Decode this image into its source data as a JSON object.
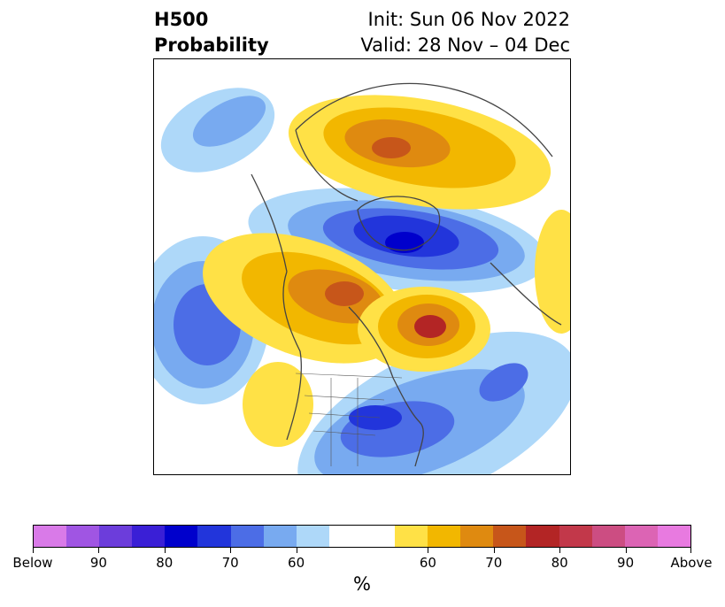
{
  "header": {
    "title_line1": "H500",
    "title_line2": "Probability",
    "init": "Init: Sun 06 Nov 2022",
    "valid": "Valid: 28 Nov – 04 Dec"
  },
  "colorbar": {
    "unit": "%",
    "colors": [
      "#d97ae8",
      "#a055e3",
      "#6c3ddb",
      "#3a1fd6",
      "#0000cc",
      "#2235db",
      "#4c6de6",
      "#78aaf0",
      "#aed8f9",
      "#ffffff",
      "#ffe146",
      "#f2b700",
      "#df8a10",
      "#c7561a",
      "#b32525",
      "#c2384a",
      "#cc4d82",
      "#dc64b4",
      "#e87ae0"
    ],
    "segment_widths": [
      1,
      1,
      1,
      1,
      1,
      1,
      1,
      1,
      1,
      2,
      1,
      1,
      1,
      1,
      1,
      1,
      1,
      1,
      1
    ],
    "labels": [
      "Below",
      "90",
      "80",
      "70",
      "60",
      "60",
      "70",
      "80",
      "90",
      "Above"
    ]
  },
  "legend_colors": {
    "below_60": "#aed8f9",
    "below_70": "#78aaf0",
    "below_80": "#4c6de6",
    "below_90": "#2235db",
    "below_max": "#0000cc",
    "above_60": "#ffe146",
    "above_70": "#f2b700",
    "above_80": "#df8a10",
    "above_90": "#c7561a",
    "above_max": "#b32525"
  }
}
